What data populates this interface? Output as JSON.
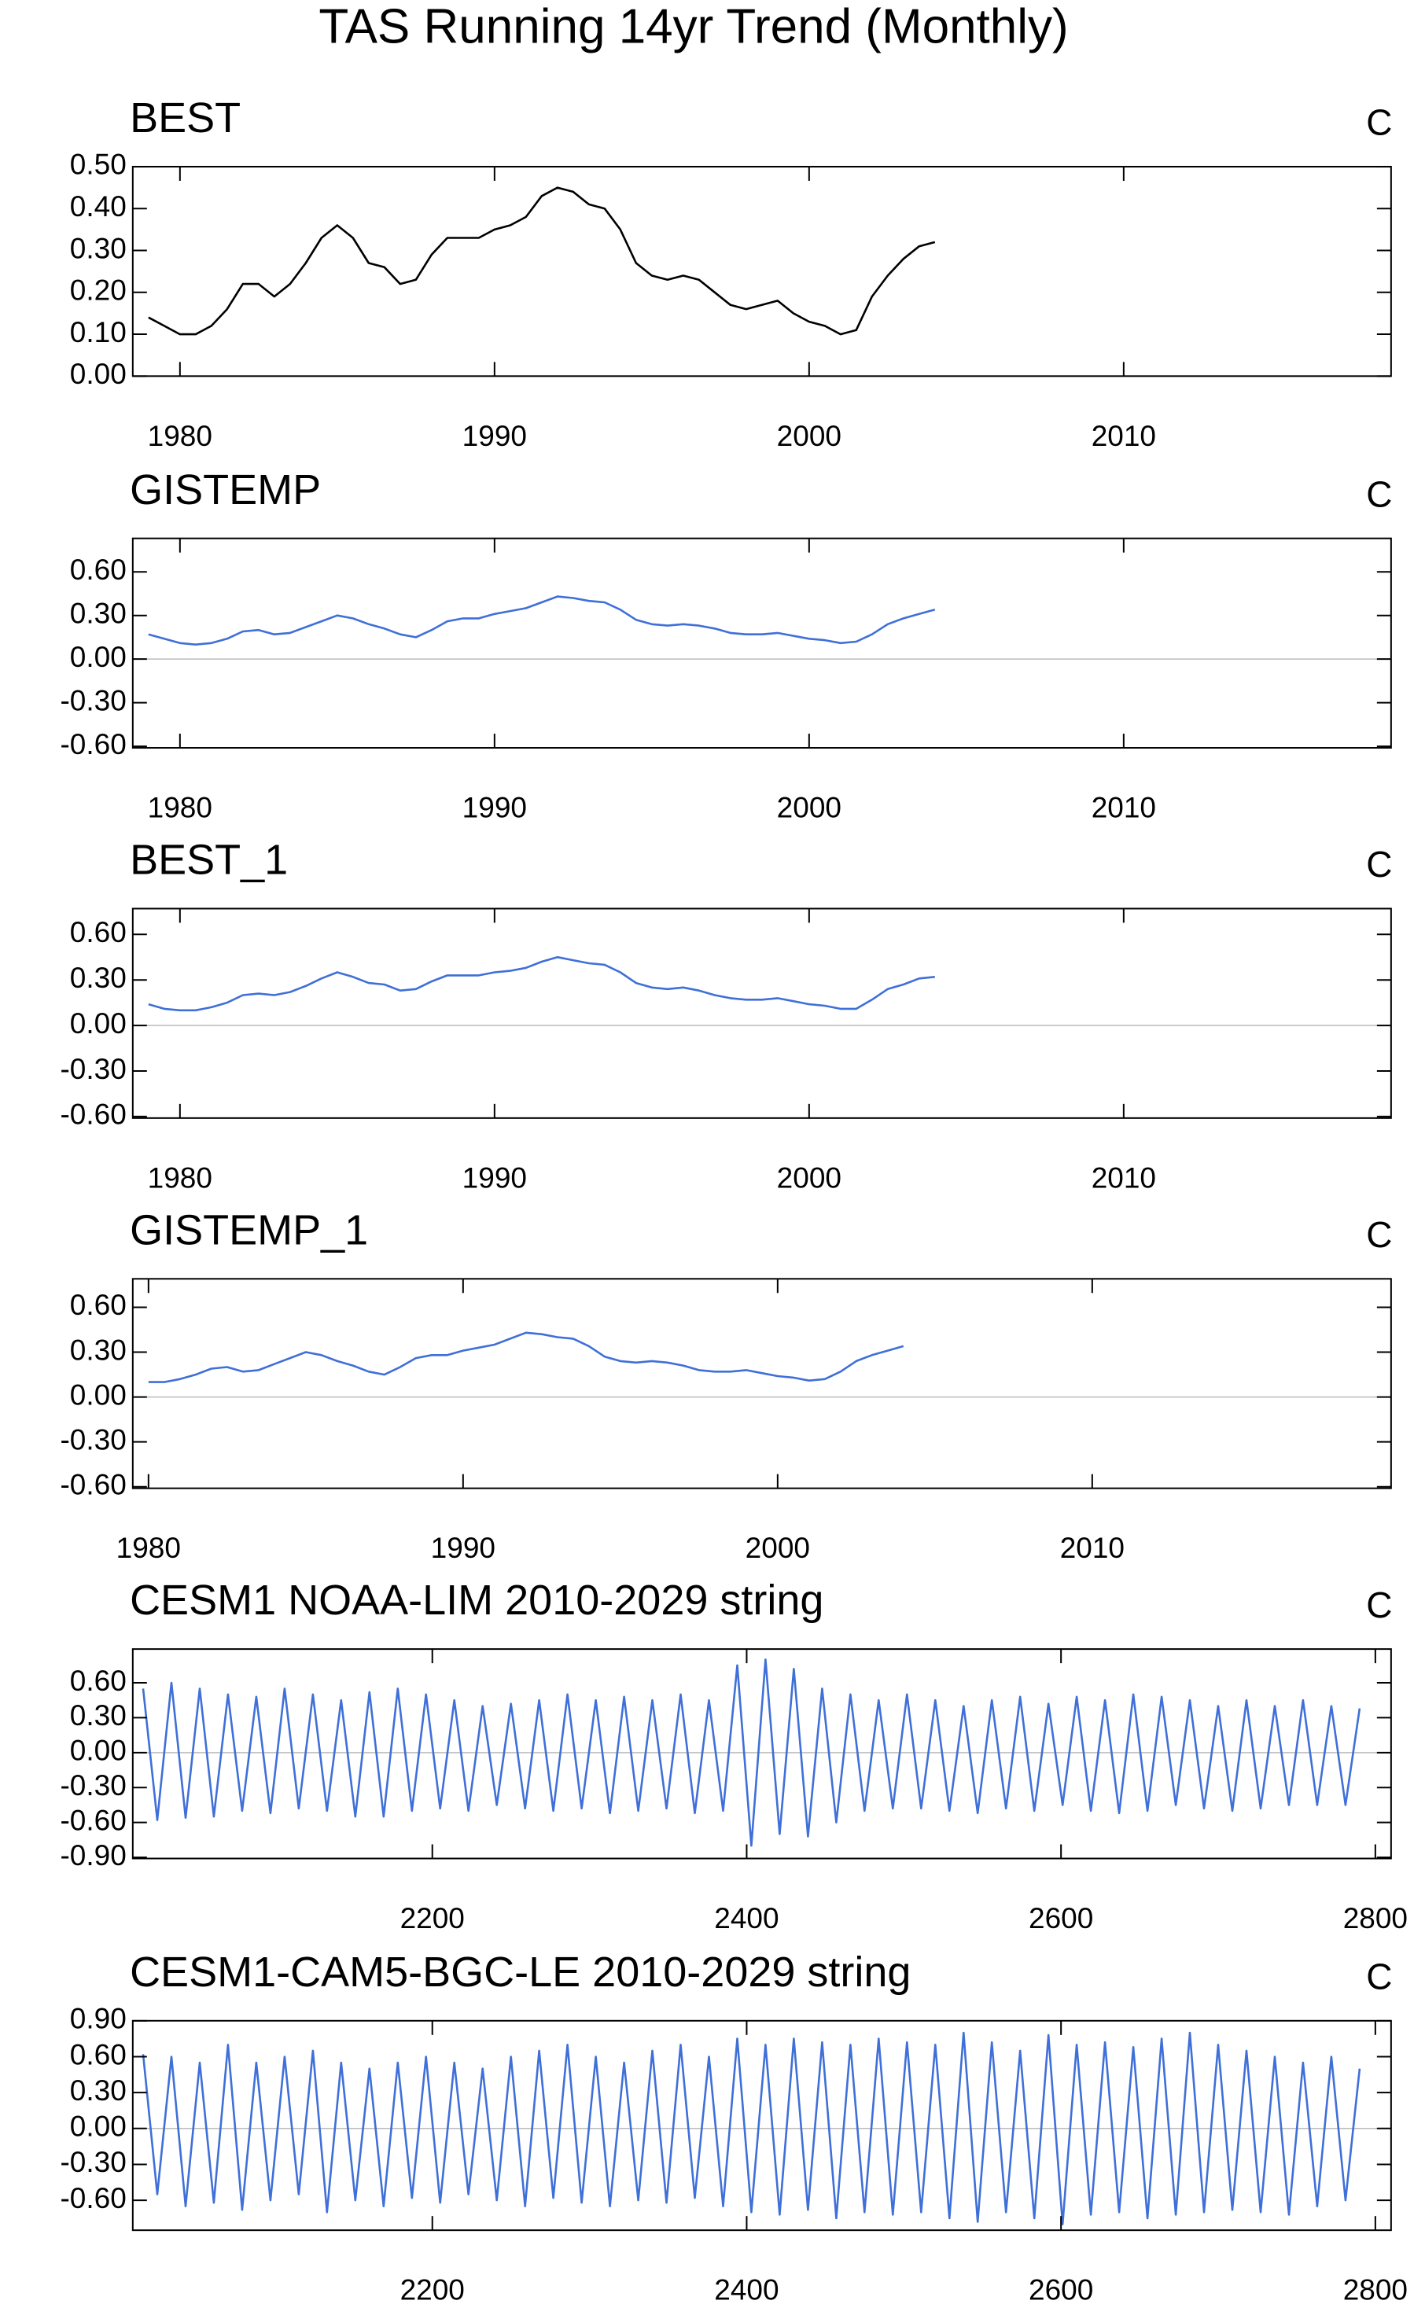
{
  "title": "TAS Running 14yr Trend (Monthly)",
  "chart_data": [
    {
      "type": "line",
      "title": "BEST",
      "units": "C",
      "color": "#000000",
      "x": [
        1979,
        1979.5,
        1980,
        1980.5,
        1981,
        1981.5,
        1982,
        1982.5,
        1983,
        1983.5,
        1984,
        1984.5,
        1985,
        1985.5,
        1986,
        1986.5,
        1987,
        1987.5,
        1988,
        1988.5,
        1989,
        1989.5,
        1990,
        1990.5,
        1991,
        1991.5,
        1992,
        1992.5,
        1993,
        1993.5,
        1994,
        1994.5,
        1995,
        1995.5,
        1996,
        1996.5,
        1997,
        1997.5,
        1998,
        1998.5,
        1999,
        1999.5,
        2000,
        2000.5,
        2001,
        2001.5,
        2002,
        2002.5,
        2003,
        2003.5,
        2004
      ],
      "values": [
        0.14,
        0.12,
        0.1,
        0.1,
        0.12,
        0.16,
        0.22,
        0.22,
        0.19,
        0.22,
        0.27,
        0.33,
        0.36,
        0.33,
        0.27,
        0.26,
        0.22,
        0.23,
        0.29,
        0.33,
        0.33,
        0.33,
        0.35,
        0.36,
        0.38,
        0.43,
        0.45,
        0.44,
        0.41,
        0.4,
        0.35,
        0.27,
        0.24,
        0.23,
        0.24,
        0.23,
        0.2,
        0.17,
        0.16,
        0.17,
        0.18,
        0.15,
        0.13,
        0.12,
        0.1,
        0.11,
        0.19,
        0.24,
        0.28,
        0.31,
        0.32
      ],
      "xlim": [
        1978.5,
        2018.5
      ],
      "xticks": [
        1980,
        1990,
        2000,
        2010
      ],
      "ylim": [
        0,
        0.5
      ],
      "yticks": [
        {
          "value": 0.5,
          "label": "0.50"
        },
        {
          "value": 0.4,
          "label": "0.40"
        },
        {
          "value": 0.3,
          "label": "0.30"
        },
        {
          "value": 0.2,
          "label": "0.20"
        },
        {
          "value": 0.1,
          "label": "0.10"
        },
        {
          "value": 0,
          "label": "0.00"
        }
      ]
    },
    {
      "type": "line",
      "title": "GISTEMP",
      "units": "C",
      "color": "#3f6fd8",
      "reference_line": 0,
      "x": [
        1979,
        1979.5,
        1980,
        1980.5,
        1981,
        1981.5,
        1982,
        1982.5,
        1983,
        1983.5,
        1984,
        1984.5,
        1985,
        1985.5,
        1986,
        1986.5,
        1987,
        1987.5,
        1988,
        1988.5,
        1989,
        1989.5,
        1990,
        1990.5,
        1991,
        1991.5,
        1992,
        1992.5,
        1993,
        1993.5,
        1994,
        1994.5,
        1995,
        1995.5,
        1996,
        1996.5,
        1997,
        1997.5,
        1998,
        1998.5,
        1999,
        1999.5,
        2000,
        2000.5,
        2001,
        2001.5,
        2002,
        2002.5,
        2003,
        2003.5,
        2004
      ],
      "values": [
        0.17,
        0.14,
        0.11,
        0.1,
        0.11,
        0.14,
        0.19,
        0.2,
        0.17,
        0.18,
        0.22,
        0.26,
        0.3,
        0.28,
        0.24,
        0.21,
        0.17,
        0.15,
        0.2,
        0.26,
        0.28,
        0.28,
        0.31,
        0.33,
        0.35,
        0.39,
        0.43,
        0.42,
        0.4,
        0.39,
        0.34,
        0.27,
        0.24,
        0.23,
        0.24,
        0.23,
        0.21,
        0.18,
        0.17,
        0.17,
        0.18,
        0.16,
        0.14,
        0.13,
        0.11,
        0.12,
        0.17,
        0.24,
        0.28,
        0.31,
        0.34
      ],
      "xlim": [
        1978.5,
        2018.5
      ],
      "xticks": [
        1980,
        1990,
        2000,
        2010
      ],
      "ylim": [
        -0.61,
        0.83
      ],
      "yticks": [
        {
          "value": 0.6,
          "label": "0.60"
        },
        {
          "value": 0.3,
          "label": "0.30"
        },
        {
          "value": 0,
          "label": "0.00"
        },
        {
          "value": -0.3,
          "label": "-0.30"
        },
        {
          "value": -0.6,
          "label": "-0.60"
        }
      ]
    },
    {
      "type": "line",
      "title": "BEST_1",
      "units": "C",
      "color": "#3f6fd8",
      "reference_line": 0,
      "x": [
        1979,
        1979.5,
        1980,
        1980.5,
        1981,
        1981.5,
        1982,
        1982.5,
        1983,
        1983.5,
        1984,
        1984.5,
        1985,
        1985.5,
        1986,
        1986.5,
        1987,
        1987.5,
        1988,
        1988.5,
        1989,
        1989.5,
        1990,
        1990.5,
        1991,
        1991.5,
        1992,
        1992.5,
        1993,
        1993.5,
        1994,
        1994.5,
        1995,
        1995.5,
        1996,
        1996.5,
        1997,
        1997.5,
        1998,
        1998.5,
        1999,
        1999.5,
        2000,
        2000.5,
        2001,
        2001.5,
        2002,
        2002.5,
        2003,
        2003.5,
        2004
      ],
      "values": [
        0.14,
        0.11,
        0.1,
        0.1,
        0.12,
        0.15,
        0.2,
        0.21,
        0.2,
        0.22,
        0.26,
        0.31,
        0.35,
        0.32,
        0.28,
        0.27,
        0.23,
        0.24,
        0.29,
        0.33,
        0.33,
        0.33,
        0.35,
        0.36,
        0.38,
        0.42,
        0.45,
        0.43,
        0.41,
        0.4,
        0.35,
        0.28,
        0.25,
        0.24,
        0.25,
        0.23,
        0.2,
        0.18,
        0.17,
        0.17,
        0.18,
        0.16,
        0.14,
        0.13,
        0.11,
        0.11,
        0.17,
        0.24,
        0.27,
        0.31,
        0.32
      ],
      "xlim": [
        1978.5,
        2018.5
      ],
      "xticks": [
        1980,
        1990,
        2000,
        2010
      ],
      "ylim": [
        -0.61,
        0.77
      ],
      "yticks": [
        {
          "value": 0.6,
          "label": "0.60"
        },
        {
          "value": 0.3,
          "label": "0.30"
        },
        {
          "value": 0,
          "label": "0.00"
        },
        {
          "value": -0.3,
          "label": "-0.30"
        },
        {
          "value": -0.6,
          "label": "-0.60"
        }
      ]
    },
    {
      "type": "line",
      "title": "GISTEMP_1",
      "units": "C",
      "color": "#3f6fd8",
      "reference_line": 0,
      "x": [
        1980,
        1980.5,
        1981,
        1981.5,
        1982,
        1982.5,
        1983,
        1983.5,
        1984,
        1984.5,
        1985,
        1985.5,
        1986,
        1986.5,
        1987,
        1987.5,
        1988,
        1988.5,
        1989,
        1989.5,
        1990,
        1990.5,
        1991,
        1991.5,
        1992,
        1992.5,
        1993,
        1993.5,
        1994,
        1994.5,
        1995,
        1995.5,
        1996,
        1996.5,
        1997,
        1997.5,
        1998,
        1998.5,
        1999,
        1999.5,
        2000,
        2000.5,
        2001,
        2001.5,
        2002,
        2002.5,
        2003,
        2003.5,
        2004
      ],
      "values": [
        0.1,
        0.1,
        0.12,
        0.15,
        0.19,
        0.2,
        0.17,
        0.18,
        0.22,
        0.26,
        0.3,
        0.28,
        0.24,
        0.21,
        0.17,
        0.15,
        0.2,
        0.26,
        0.28,
        0.28,
        0.31,
        0.33,
        0.35,
        0.39,
        0.43,
        0.42,
        0.4,
        0.39,
        0.34,
        0.27,
        0.24,
        0.23,
        0.24,
        0.23,
        0.21,
        0.18,
        0.17,
        0.17,
        0.18,
        0.16,
        0.14,
        0.13,
        0.11,
        0.12,
        0.17,
        0.24,
        0.28,
        0.31,
        0.34
      ],
      "xlim": [
        1979.5,
        2019.5
      ],
      "xticks": [
        1980,
        1990,
        2000,
        2010
      ],
      "ylim": [
        -0.61,
        0.79
      ],
      "yticks": [
        {
          "value": 0.6,
          "label": "0.60"
        },
        {
          "value": 0.3,
          "label": "0.30"
        },
        {
          "value": 0,
          "label": "0.00"
        },
        {
          "value": -0.3,
          "label": "-0.30"
        },
        {
          "value": -0.6,
          "label": "-0.60"
        }
      ]
    },
    {
      "type": "line",
      "title": "CESM1 NOAA-LIM 2010-2029 string",
      "units": "C",
      "color": "#3f6fd8",
      "reference_line": 0,
      "x": [
        2016,
        2025,
        2034,
        2043,
        2052,
        2061,
        2070,
        2079,
        2088,
        2097,
        2106,
        2115,
        2124,
        2133,
        2142,
        2151,
        2160,
        2169,
        2178,
        2187,
        2196,
        2205,
        2214,
        2223,
        2232,
        2241,
        2250,
        2259,
        2268,
        2277,
        2286,
        2295,
        2304,
        2313,
        2322,
        2331,
        2340,
        2349,
        2358,
        2367,
        2376,
        2385,
        2394,
        2403,
        2412,
        2421,
        2430,
        2439,
        2448,
        2457,
        2466,
        2475,
        2484,
        2493,
        2502,
        2511,
        2520,
        2529,
        2538,
        2547,
        2556,
        2565,
        2574,
        2583,
        2592,
        2601,
        2610,
        2619,
        2628,
        2637,
        2646,
        2655,
        2664,
        2673,
        2682,
        2691,
        2700,
        2709,
        2718,
        2727,
        2736,
        2745,
        2754,
        2763,
        2772,
        2781,
        2790
      ],
      "values": [
        0.55,
        -0.58,
        0.6,
        -0.56,
        0.55,
        -0.55,
        0.5,
        -0.5,
        0.48,
        -0.52,
        0.55,
        -0.48,
        0.5,
        -0.5,
        0.45,
        -0.55,
        0.52,
        -0.55,
        0.55,
        -0.5,
        0.5,
        -0.48,
        0.45,
        -0.5,
        0.4,
        -0.45,
        0.42,
        -0.48,
        0.45,
        -0.5,
        0.5,
        -0.48,
        0.45,
        -0.52,
        0.48,
        -0.5,
        0.45,
        -0.48,
        0.5,
        -0.52,
        0.45,
        -0.5,
        0.75,
        -0.8,
        0.8,
        -0.7,
        0.72,
        -0.72,
        0.55,
        -0.6,
        0.5,
        -0.5,
        0.45,
        -0.48,
        0.5,
        -0.48,
        0.45,
        -0.5,
        0.4,
        -0.52,
        0.45,
        -0.48,
        0.48,
        -0.5,
        0.42,
        -0.45,
        0.48,
        -0.5,
        0.45,
        -0.52,
        0.5,
        -0.5,
        0.48,
        -0.45,
        0.45,
        -0.48,
        0.4,
        -0.5,
        0.45,
        -0.48,
        0.4,
        -0.45,
        0.45,
        -0.45,
        0.4,
        -0.45,
        0.38
      ],
      "xlim": [
        2009.4,
        2810
      ],
      "xticks": [
        2200,
        2400,
        2600,
        2800
      ],
      "ylim": [
        -0.91,
        0.89
      ],
      "yticks": [
        {
          "value": 0.6,
          "label": "0.60"
        },
        {
          "value": 0.3,
          "label": "0.30"
        },
        {
          "value": 0,
          "label": "0.00"
        },
        {
          "value": -0.3,
          "label": "-0.30"
        },
        {
          "value": -0.6,
          "label": "-0.60"
        },
        {
          "value": -0.9,
          "label": "-0.90"
        }
      ]
    },
    {
      "type": "line",
      "title": "CESM1-CAM5-BGC-LE 2010-2029 string",
      "units": "C",
      "color": "#3f6fd8",
      "reference_line": 0,
      "x": [
        2016,
        2025,
        2034,
        2043,
        2052,
        2061,
        2070,
        2079,
        2088,
        2097,
        2106,
        2115,
        2124,
        2133,
        2142,
        2151,
        2160,
        2169,
        2178,
        2187,
        2196,
        2205,
        2214,
        2223,
        2232,
        2241,
        2250,
        2259,
        2268,
        2277,
        2286,
        2295,
        2304,
        2313,
        2322,
        2331,
        2340,
        2349,
        2358,
        2367,
        2376,
        2385,
        2394,
        2403,
        2412,
        2421,
        2430,
        2439,
        2448,
        2457,
        2466,
        2475,
        2484,
        2493,
        2502,
        2511,
        2520,
        2529,
        2538,
        2547,
        2556,
        2565,
        2574,
        2583,
        2592,
        2601,
        2610,
        2619,
        2628,
        2637,
        2646,
        2655,
        2664,
        2673,
        2682,
        2691,
        2700,
        2709,
        2718,
        2727,
        2736,
        2745,
        2754,
        2763,
        2772,
        2781,
        2790
      ],
      "values": [
        0.62,
        -0.55,
        0.6,
        -0.65,
        0.55,
        -0.62,
        0.7,
        -0.68,
        0.55,
        -0.6,
        0.6,
        -0.55,
        0.65,
        -0.7,
        0.55,
        -0.6,
        0.5,
        -0.65,
        0.55,
        -0.58,
        0.6,
        -0.62,
        0.55,
        -0.55,
        0.5,
        -0.6,
        0.6,
        -0.65,
        0.65,
        -0.58,
        0.7,
        -0.62,
        0.6,
        -0.65,
        0.55,
        -0.6,
        0.65,
        -0.62,
        0.7,
        -0.58,
        0.6,
        -0.65,
        0.75,
        -0.7,
        0.7,
        -0.72,
        0.75,
        -0.68,
        0.72,
        -0.75,
        0.7,
        -0.7,
        0.75,
        -0.72,
        0.72,
        -0.7,
        0.7,
        -0.75,
        0.8,
        -0.78,
        0.72,
        -0.7,
        0.65,
        -0.75,
        0.78,
        -0.8,
        0.7,
        -0.72,
        0.72,
        -0.7,
        0.68,
        -0.75,
        0.75,
        -0.72,
        0.8,
        -0.7,
        0.7,
        -0.68,
        0.65,
        -0.7,
        0.6,
        -0.72,
        0.55,
        -0.65,
        0.6,
        -0.6,
        0.5
      ],
      "xlim": [
        2009.4,
        2810
      ],
      "xticks": [
        2200,
        2400,
        2600,
        2800
      ],
      "ylim": [
        -0.85,
        0.9
      ],
      "yticks": [
        {
          "value": 0.9,
          "label": "0.90"
        },
        {
          "value": 0.6,
          "label": "0.60"
        },
        {
          "value": 0.3,
          "label": "0.30"
        },
        {
          "value": 0,
          "label": "0.00"
        },
        {
          "value": -0.3,
          "label": "-0.30"
        },
        {
          "value": -0.6,
          "label": "-0.60"
        }
      ]
    }
  ]
}
